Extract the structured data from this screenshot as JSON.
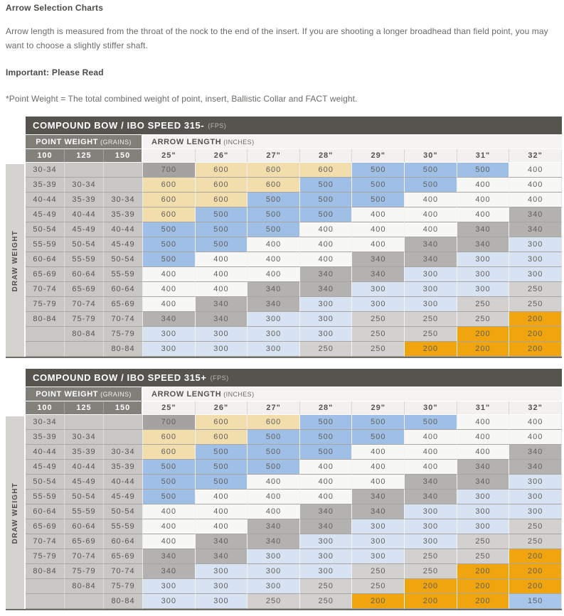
{
  "page": {
    "title": "Arrow Selection Charts",
    "intro": "Arrow length is measured from the throat of the nock to the end of the insert. If you are shooting a longer broadhead than field point, you may want to choose a slightly stiffer shaft.",
    "important_label": "Important: Please Read",
    "note": "*Point Weight = The total combined weight of point, insert, Ballistic Collar and FACT weight."
  },
  "spine_colors": {
    "700": "#a4a3a1",
    "600": "#f2ddad",
    "500": "#9fbfe7",
    "400": "#f7f7f6",
    "340": "#b3b2b0",
    "300": "#d7e3f2",
    "250": "#d2d1cf",
    "200": "#f0a50f",
    "150": "#a8c6ea"
  },
  "tables": [
    {
      "title": "COMPOUND BOW / IBO SPEED 315-",
      "title_unit": "(FPS)",
      "point_weight_label": "POINT WEIGHT",
      "point_weight_unit": "(GRAINS)",
      "arrow_length_label": "ARROW LENGTH",
      "arrow_length_unit": "(INCHES)",
      "draw_weight_label": "DRAW WEIGHT",
      "point_weight_columns": [
        "100",
        "125",
        "150"
      ],
      "arrow_length_columns": [
        "25\"",
        "26\"",
        "27\"",
        "28\"",
        "29\"",
        "30\"",
        "31\"",
        "32\""
      ],
      "rows": [
        {
          "labels": [
            "30-34",
            "",
            ""
          ],
          "values": [
            700,
            600,
            600,
            600,
            500,
            500,
            500,
            400
          ]
        },
        {
          "labels": [
            "35-39",
            "30-34",
            ""
          ],
          "values": [
            600,
            600,
            600,
            500,
            500,
            500,
            400,
            400
          ]
        },
        {
          "labels": [
            "40-44",
            "35-39",
            "30-34"
          ],
          "values": [
            600,
            600,
            500,
            500,
            500,
            400,
            400,
            400
          ]
        },
        {
          "labels": [
            "45-49",
            "40-44",
            "35-39"
          ],
          "values": [
            600,
            500,
            500,
            500,
            400,
            400,
            400,
            340
          ]
        },
        {
          "labels": [
            "50-54",
            "45-49",
            "40-44"
          ],
          "values": [
            500,
            500,
            500,
            400,
            400,
            400,
            340,
            340
          ]
        },
        {
          "labels": [
            "55-59",
            "50-54",
            "45-49"
          ],
          "values": [
            500,
            500,
            400,
            400,
            400,
            340,
            340,
            300
          ]
        },
        {
          "labels": [
            "60-64",
            "55-59",
            "50-54"
          ],
          "values": [
            500,
            400,
            400,
            400,
            340,
            340,
            300,
            300
          ]
        },
        {
          "labels": [
            "65-69",
            "60-64",
            "55-59"
          ],
          "values": [
            400,
            400,
            400,
            340,
            340,
            300,
            300,
            300
          ]
        },
        {
          "labels": [
            "70-74",
            "65-69",
            "60-64"
          ],
          "values": [
            400,
            400,
            340,
            340,
            300,
            300,
            300,
            250
          ]
        },
        {
          "labels": [
            "75-79",
            "70-74",
            "65-69"
          ],
          "values": [
            400,
            340,
            340,
            300,
            300,
            300,
            250,
            250
          ]
        },
        {
          "labels": [
            "80-84",
            "75-79",
            "70-74"
          ],
          "values": [
            340,
            340,
            300,
            300,
            250,
            250,
            250,
            200
          ]
        },
        {
          "labels": [
            "",
            "80-84",
            "75-79"
          ],
          "values": [
            300,
            300,
            300,
            300,
            250,
            250,
            200,
            200
          ]
        },
        {
          "labels": [
            "",
            "",
            "80-84"
          ],
          "values": [
            300,
            300,
            300,
            250,
            250,
            200,
            200,
            200
          ]
        }
      ]
    },
    {
      "title": "COMPOUND BOW / IBO SPEED 315+",
      "title_unit": "(FPS)",
      "point_weight_label": "POINT WEIGHT",
      "point_weight_unit": "(GRAINS)",
      "arrow_length_label": "ARROW LENGTH",
      "arrow_length_unit": "(INCHES)",
      "draw_weight_label": "DRAW WEIGHT",
      "point_weight_columns": [
        "100",
        "125",
        "150"
      ],
      "arrow_length_columns": [
        "25\"",
        "26\"",
        "27\"",
        "28\"",
        "29\"",
        "30\"",
        "31\"",
        "32\""
      ],
      "rows": [
        {
          "labels": [
            "30-34",
            "",
            ""
          ],
          "values": [
            700,
            600,
            600,
            500,
            500,
            500,
            400,
            400
          ]
        },
        {
          "labels": [
            "35-39",
            "30-34",
            ""
          ],
          "values": [
            600,
            600,
            500,
            500,
            500,
            400,
            400,
            400
          ]
        },
        {
          "labels": [
            "40-44",
            "35-39",
            "30-34"
          ],
          "values": [
            600,
            500,
            500,
            500,
            400,
            400,
            400,
            340
          ]
        },
        {
          "labels": [
            "45-49",
            "40-44",
            "35-39"
          ],
          "values": [
            500,
            500,
            500,
            400,
            400,
            400,
            340,
            340
          ]
        },
        {
          "labels": [
            "50-54",
            "45-49",
            "40-44"
          ],
          "values": [
            500,
            500,
            400,
            400,
            400,
            340,
            340,
            300
          ]
        },
        {
          "labels": [
            "55-59",
            "50-54",
            "45-49"
          ],
          "values": [
            500,
            400,
            400,
            400,
            340,
            340,
            300,
            300
          ]
        },
        {
          "labels": [
            "60-64",
            "55-59",
            "50-54"
          ],
          "values": [
            400,
            400,
            400,
            340,
            340,
            300,
            300,
            300
          ]
        },
        {
          "labels": [
            "65-69",
            "60-64",
            "55-59"
          ],
          "values": [
            400,
            400,
            340,
            340,
            300,
            300,
            300,
            250
          ]
        },
        {
          "labels": [
            "70-74",
            "65-69",
            "60-64"
          ],
          "values": [
            400,
            340,
            340,
            300,
            300,
            300,
            250,
            250
          ]
        },
        {
          "labels": [
            "75-79",
            "70-74",
            "65-69"
          ],
          "values": [
            340,
            340,
            300,
            300,
            300,
            250,
            250,
            200
          ]
        },
        {
          "labels": [
            "80-84",
            "75-79",
            "70-74"
          ],
          "values": [
            340,
            300,
            300,
            300,
            250,
            250,
            200,
            200
          ]
        },
        {
          "labels": [
            "",
            "80-84",
            "75-79"
          ],
          "values": [
            300,
            300,
            300,
            250,
            250,
            200,
            200,
            200
          ]
        },
        {
          "labels": [
            "",
            "",
            "80-84"
          ],
          "values": [
            300,
            300,
            250,
            250,
            200,
            200,
            200,
            150
          ]
        }
      ]
    }
  ]
}
